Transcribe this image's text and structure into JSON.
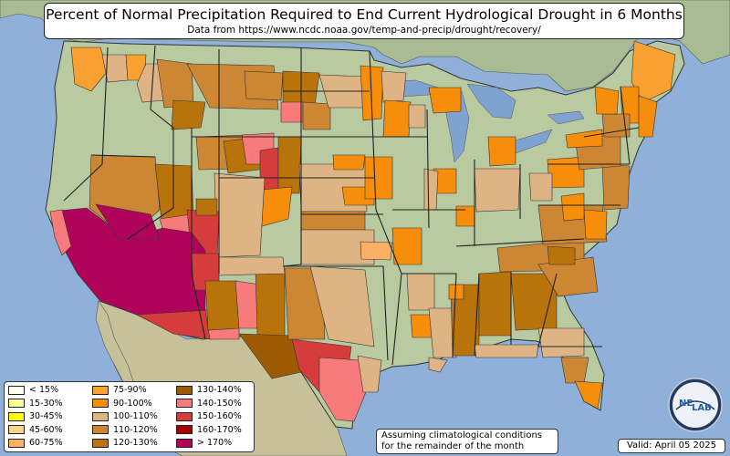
{
  "title": "Percent of Normal Precipitation Required to End Current Hydrological Drought in 6 Months",
  "subtitle": "Data from https://www.ncdc.noaa.gov/temp-and-precip/drought/recovery/",
  "legend": [
    {
      "label": "< 15%",
      "color": "#fffdf0"
    },
    {
      "label": "15-30%",
      "color": "#ffff99"
    },
    {
      "label": "30-45%",
      "color": "#ffff00"
    },
    {
      "label": "45-60%",
      "color": "#fcd28c"
    },
    {
      "label": "60-75%",
      "color": "#fbb066"
    },
    {
      "label": "75-90%",
      "color": "#f8a131"
    },
    {
      "label": "90-100%",
      "color": "#f68e0b"
    },
    {
      "label": "100-110%",
      "color": "#deb484"
    },
    {
      "label": "110-120%",
      "color": "#cd8634"
    },
    {
      "label": "120-130%",
      "color": "#b8730b"
    },
    {
      "label": "130-140%",
      "color": "#9c5b02"
    },
    {
      "label": "140-150%",
      "color": "#f87b7b"
    },
    {
      "label": "150-160%",
      "color": "#d63c3c"
    },
    {
      "label": "160-170%",
      "color": "#a80000"
    },
    {
      "label": "> 170%",
      "color": "#b0045a"
    }
  ],
  "note": [
    "Assuming climatological conditions",
    "for the remainder of the month"
  ],
  "valid": "Valid: April 05 2025",
  "logo_text": [
    "NE",
    "LAB"
  ],
  "colors": {
    "ocean": "#8fb0d8",
    "land": "#b9c9a0",
    "canada": "#a9bb92",
    "mexico": "#c7c19a",
    "lakes": "#7fa3d1"
  }
}
